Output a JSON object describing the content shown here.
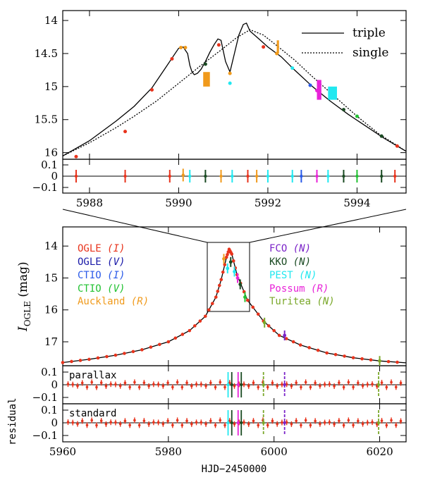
{
  "chart_data": [
    {
      "type": "line",
      "panel": "zoom-light-curve",
      "xlim": [
        5987.4,
        5995.1
      ],
      "ylim": [
        16.1,
        13.85
      ],
      "yticks": [
        14,
        14.5,
        15,
        15.5,
        16
      ],
      "ytick_labels": [
        "14",
        "14.5",
        "15",
        "15.5",
        "16"
      ],
      "legend": {
        "position": "top-right",
        "entries": [
          "triple",
          "single"
        ]
      },
      "series": [
        {
          "name": "triple",
          "style": "solid",
          "x": [
            5987.4,
            5988,
            5988.6,
            5989,
            5989.4,
            5989.7,
            5989.9,
            5990.0,
            5990.1,
            5990.2,
            5990.25,
            5990.3,
            5990.35,
            5990.42,
            5990.5,
            5990.6,
            5990.7,
            5990.8,
            5990.88,
            5990.95,
            5991.05,
            5991.15,
            5991.25,
            5991.35,
            5991.45,
            5991.52,
            5991.6,
            5991.8,
            5992.0,
            5992.3,
            5992.6,
            5993.0,
            5993.4,
            5993.8,
            5994.2,
            5994.6,
            5995.1
          ],
          "y": [
            16.05,
            15.82,
            15.52,
            15.3,
            15.02,
            14.72,
            14.52,
            14.42,
            14.4,
            14.5,
            14.68,
            14.78,
            14.82,
            14.8,
            14.74,
            14.62,
            14.48,
            14.36,
            14.28,
            14.3,
            14.62,
            14.78,
            14.5,
            14.22,
            14.06,
            14.04,
            14.16,
            14.28,
            14.4,
            14.55,
            14.75,
            15.0,
            15.22,
            15.42,
            15.6,
            15.78,
            15.98
          ]
        },
        {
          "name": "single",
          "style": "dashed",
          "x": [
            5987.4,
            5988,
            5988.6,
            5989,
            5989.5,
            5990,
            5990.5,
            5991,
            5991.3,
            5991.6,
            5991.9,
            5992.2,
            5992.6,
            5993,
            5993.5,
            5994,
            5994.5,
            5995.1
          ],
          "y": [
            16.05,
            15.85,
            15.62,
            15.45,
            15.22,
            14.95,
            14.68,
            14.42,
            14.26,
            14.14,
            14.22,
            14.38,
            14.6,
            14.85,
            15.15,
            15.45,
            15.72,
            15.98
          ]
        }
      ]
    },
    {
      "type": "scatter",
      "panel": "zoom-residual",
      "xlim": [
        5987.4,
        5995.1
      ],
      "ylim": [
        -0.15,
        0.15
      ],
      "yticks": [
        0.1,
        0,
        -0.1
      ],
      "ytick_labels": [
        "0.1",
        "0",
        "−0.1"
      ],
      "xticks": [
        5988,
        5990,
        5992,
        5994
      ],
      "xtick_labels": [
        "5988",
        "5990",
        "5992",
        "5994"
      ]
    },
    {
      "type": "scatter",
      "panel": "full-light-curve",
      "ylabel_main": "I",
      "ylabel_sub": "OGLE",
      "ylabel_unit": "(mag)",
      "xlim": [
        5960,
        6025
      ],
      "ylim": [
        17.75,
        13.4
      ],
      "yticks": [
        14,
        15,
        16,
        17
      ],
      "ytick_labels": [
        "14",
        "15",
        "16",
        "17"
      ],
      "legend": [
        {
          "label": "OGLE",
          "filter": "(I)",
          "color": "#e8331c"
        },
        {
          "label": "OGLE",
          "filter": "(V)",
          "color": "#1a1aa8"
        },
        {
          "label": "CTIO",
          "filter": "(I)",
          "color": "#2a5ae8"
        },
        {
          "label": "CTIO",
          "filter": "(V)",
          "color": "#22c232"
        },
        {
          "label": "Auckland",
          "filter": "(R)",
          "color": "#f09a1c"
        },
        {
          "label": "FCO",
          "filter": "(N)",
          "color": "#7a22c8"
        },
        {
          "label": "KKO",
          "filter": "(N)",
          "color": "#1a4a22"
        },
        {
          "label": "PEST",
          "filter": "(N)",
          "color": "#22e8f0"
        },
        {
          "label": "Possum",
          "filter": "(R)",
          "color": "#e822d8"
        },
        {
          "label": "Turitea",
          "filter": "(N)",
          "color": "#7aa82a"
        }
      ],
      "model_x": [
        5960,
        5965,
        5970,
        5975,
        5980,
        5984,
        5987,
        5989,
        5990,
        5991,
        5991.5,
        5992,
        5993,
        5995,
        5998,
        6001,
        6005,
        6010,
        6015,
        6020,
        6025
      ],
      "model_y": [
        17.65,
        17.55,
        17.42,
        17.25,
        17.0,
        16.65,
        16.2,
        15.6,
        15.05,
        14.35,
        14.1,
        14.25,
        14.9,
        15.7,
        16.35,
        16.8,
        17.1,
        17.35,
        17.5,
        17.6,
        17.66
      ]
    },
    {
      "type": "scatter",
      "panel": "parallax-residual",
      "label": "parallax",
      "ylim": [
        -0.15,
        0.15
      ],
      "yticks": [
        0.1,
        0,
        -0.1
      ],
      "ytick_labels": [
        "0.1",
        "0",
        "−0.1"
      ]
    },
    {
      "type": "scatter",
      "panel": "standard-residual",
      "label": "standard",
      "ylabel": "residual",
      "xlabel": "HJD−2450000",
      "xlim": [
        5960,
        6025
      ],
      "ylim": [
        -0.15,
        0.15
      ],
      "yticks": [
        0.1,
        0,
        -0.1
      ],
      "ytick_labels": [
        "0.1",
        "0",
        "−0.1"
      ],
      "xticks": [
        5960,
        5980,
        6000,
        6020
      ],
      "xtick_labels": [
        "5960",
        "5980",
        "6000",
        "6020"
      ]
    }
  ]
}
